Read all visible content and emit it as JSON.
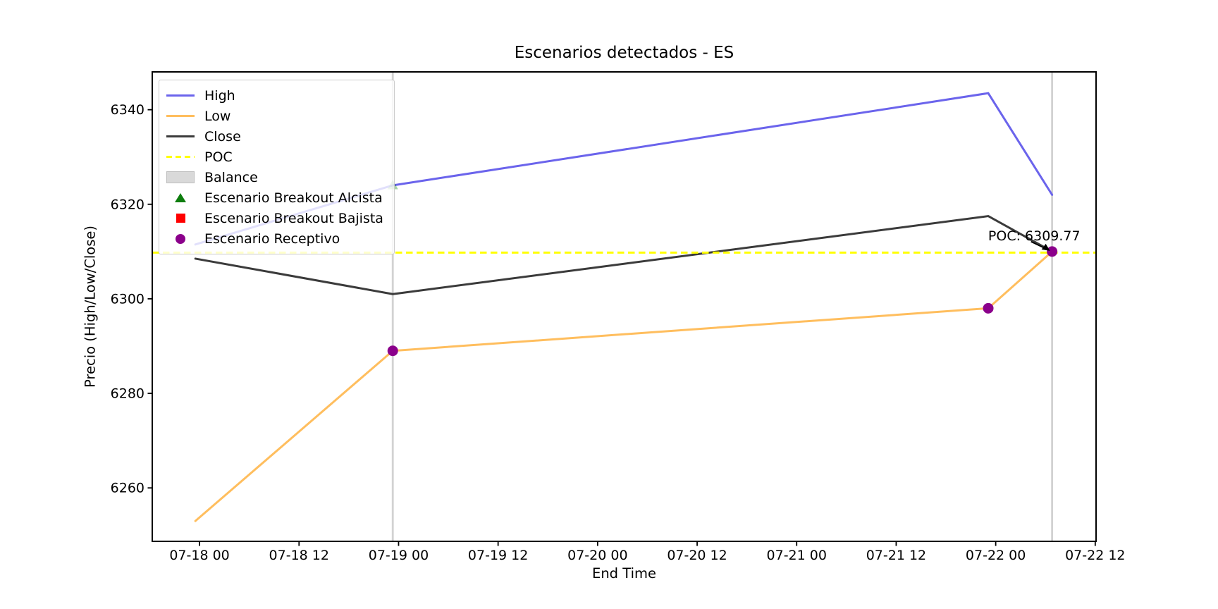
{
  "title": "Escenarios detectados - ES",
  "axes": {
    "xlabel": "End Time",
    "ylabel": "Precio (High/Low/Close)"
  },
  "legend": {
    "position": "upper-left",
    "items": [
      {
        "label": "High",
        "swatch": "line",
        "color": "#6b64ec"
      },
      {
        "label": "Low",
        "swatch": "line",
        "color": "#ffbe5e"
      },
      {
        "label": "Close",
        "swatch": "line",
        "color": "#3b3b3b"
      },
      {
        "label": "POC",
        "swatch": "dash",
        "color": "#ffff00"
      },
      {
        "label": "Balance",
        "swatch": "patch",
        "color": "#d9d9d9"
      },
      {
        "label": "Escenario Breakout Alcista",
        "swatch": "triangle",
        "color": "#0e7d0e"
      },
      {
        "label": "Escenario Breakout Bajista",
        "swatch": "square",
        "color": "#ff0000"
      },
      {
        "label": "Escenario Receptivo",
        "swatch": "circle",
        "color": "#8b008b"
      }
    ]
  },
  "chart_data": {
    "type": "line",
    "title": "Escenarios detectados - ES",
    "xlabel": "End Time",
    "ylabel": "Precio (High/Low/Close)",
    "x_axis_type": "datetime",
    "x_tick_labels": [
      "07-18 00",
      "07-18 12",
      "07-19 00",
      "07-19 12",
      "07-20 00",
      "07-20 12",
      "07-21 00",
      "07-21 12",
      "07-22 00",
      "07-22 12"
    ],
    "x_tick_hours": [
      0,
      12,
      24,
      36,
      48,
      60,
      72,
      84,
      96,
      108
    ],
    "xlim_hours": [
      -5.7,
      108.1
    ],
    "ylim": [
      6248.7,
      6348.0
    ],
    "y_ticks": [
      6260,
      6280,
      6300,
      6320,
      6340
    ],
    "grid": false,
    "x_hours": [
      -0.5,
      23.3,
      95.1,
      102.8
    ],
    "x_times_approx": [
      "07-17 23:30",
      "07-18 23:20",
      "07-21 23:05",
      "07-22 06:50"
    ],
    "series": [
      {
        "name": "High",
        "color": "#6b64ec",
        "values": [
          6311.5,
          6324.0,
          6343.5,
          6322.0
        ]
      },
      {
        "name": "Low",
        "color": "#ffbe5e",
        "values": [
          6253.0,
          6289.0,
          6298.0,
          6310.0
        ]
      },
      {
        "name": "Close",
        "color": "#3b3b3b",
        "values": [
          6308.5,
          6301.0,
          6317.5,
          6310.0
        ]
      }
    ],
    "poc": {
      "label": "POC",
      "value": 6309.77,
      "color": "#ffff00"
    },
    "balance_color": "#d2d2d2",
    "balance_zones_hours": [
      23.3,
      102.8
    ],
    "marker_colors": {
      "alcista": "#008000",
      "bajista": "#ff0000",
      "receptivo": "#8b008b"
    },
    "markers": {
      "breakout_alcista": [
        {
          "x_hours": 23.3,
          "y": 6324.0
        }
      ],
      "breakout_bajista": [],
      "receptivo": [
        {
          "x_hours": 23.3,
          "y": 6289.0
        },
        {
          "x_hours": 95.1,
          "y": 6298.0
        },
        {
          "x_hours": 102.8,
          "y": 6310.0
        }
      ]
    },
    "annotation": {
      "text": "POC: 6309.77",
      "x_hours": 102.8,
      "y": 6310.0
    },
    "legend_entries": [
      "High",
      "Low",
      "Close",
      "POC",
      "Balance",
      "Escenario Breakout Alcista",
      "Escenario Breakout Bajista",
      "Escenario Receptivo"
    ]
  }
}
